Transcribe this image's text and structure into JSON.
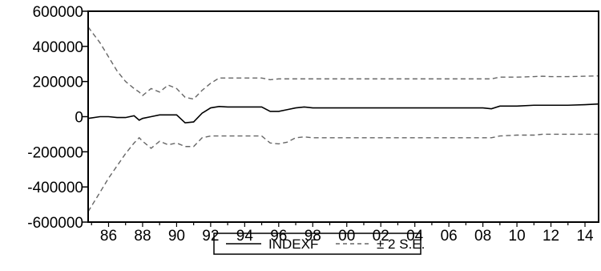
{
  "chart_data": {
    "type": "line",
    "title": "",
    "xlabel": "",
    "ylabel": "",
    "x": [
      1984.8,
      1985.5,
      1986,
      1986.5,
      1987,
      1987.5,
      1987.8,
      1988,
      1988.5,
      1989,
      1989.5,
      1990,
      1990.5,
      1991,
      1991.5,
      1992,
      1992.5,
      1993,
      1994,
      1995,
      1995.5,
      1996,
      1996.5,
      1997,
      1997.5,
      1998,
      1999,
      2000,
      2002,
      2004,
      2006,
      2008,
      2008.5,
      2009,
      2010,
      2011,
      2011.5,
      2012,
      2013,
      2014,
      2014.8
    ],
    "xlim": [
      1984.8,
      2014.8
    ],
    "ylim": [
      -600000,
      600000
    ],
    "x_ticks": [
      1986,
      1988,
      1990,
      1992,
      1994,
      1996,
      1998,
      2000,
      2002,
      2004,
      2006,
      2008,
      2010,
      2012,
      2014
    ],
    "x_tick_labels": [
      "86",
      "88",
      "90",
      "92",
      "94",
      "96",
      "98",
      "00",
      "02",
      "04",
      "06",
      "08",
      "10",
      "12",
      "14"
    ],
    "y_ticks": [
      -600000,
      -400000,
      -200000,
      0,
      200000,
      400000,
      600000
    ],
    "y_tick_labels": [
      "-600000",
      "-400000",
      "-200000",
      "0",
      "200000",
      "400000",
      "600000"
    ],
    "grid": false,
    "legend": "bottom-center",
    "series": [
      {
        "name": "INDEXF",
        "style": "solid",
        "color": "#000000",
        "values": [
          -10000,
          0,
          0,
          -5000,
          -5000,
          5000,
          -20000,
          -10000,
          0,
          10000,
          10000,
          10000,
          -35000,
          -30000,
          20000,
          50000,
          58000,
          55000,
          55000,
          55000,
          30000,
          30000,
          40000,
          50000,
          55000,
          50000,
          50000,
          50000,
          50000,
          50000,
          50000,
          50000,
          45000,
          60000,
          60000,
          65000,
          65000,
          65000,
          65000,
          68000,
          72000
        ]
      },
      {
        "name": "± 2 S.E.",
        "style": "dashed",
        "color": "#666666",
        "values": [
          510000,
          420000,
          340000,
          260000,
          200000,
          160000,
          140000,
          120000,
          160000,
          140000,
          180000,
          160000,
          110000,
          100000,
          150000,
          190000,
          220000,
          220000,
          220000,
          220000,
          210000,
          215000,
          215000,
          215000,
          215000,
          215000,
          215000,
          215000,
          215000,
          215000,
          215000,
          215000,
          215000,
          225000,
          225000,
          228000,
          230000,
          228000,
          228000,
          230000,
          232000
        ]
      },
      {
        "name": "",
        "style": "dashed",
        "color": "#666666",
        "values": [
          -540000,
          -430000,
          -350000,
          -280000,
          -210000,
          -150000,
          -120000,
          -140000,
          -180000,
          -140000,
          -160000,
          -150000,
          -170000,
          -170000,
          -120000,
          -110000,
          -110000,
          -110000,
          -110000,
          -110000,
          -150000,
          -155000,
          -145000,
          -120000,
          -115000,
          -120000,
          -120000,
          -120000,
          -120000,
          -120000,
          -120000,
          -120000,
          -120000,
          -110000,
          -105000,
          -105000,
          -100000,
          -100000,
          -100000,
          -100000,
          -100000
        ]
      }
    ]
  }
}
